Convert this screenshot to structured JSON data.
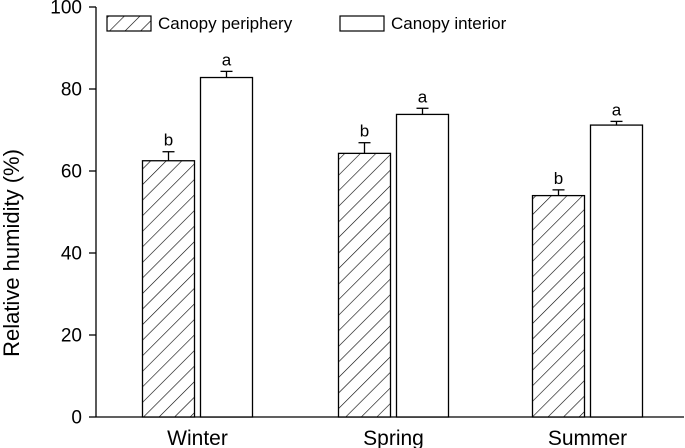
{
  "chart_data": {
    "type": "bar",
    "title": "",
    "xlabel": "",
    "ylabel": "Relative humidity (%)",
    "ylim": [
      0,
      100
    ],
    "yticks": [
      0,
      20,
      40,
      60,
      80,
      100
    ],
    "categories": [
      "Winter",
      "Spring",
      "Summer"
    ],
    "series": [
      {
        "name": "Canopy periphery",
        "pattern": "hatched",
        "values": [
          62.5,
          64.3,
          54.0
        ],
        "errors": [
          2.2,
          2.6,
          1.4
        ],
        "labels": [
          "b",
          "b",
          "b"
        ]
      },
      {
        "name": "Canopy interior",
        "pattern": "white",
        "values": [
          82.8,
          73.8,
          71.2
        ],
        "errors": [
          1.5,
          1.5,
          0.9
        ],
        "labels": [
          "a",
          "a",
          "a"
        ]
      }
    ],
    "grid": false,
    "legend_position": "top-left"
  }
}
